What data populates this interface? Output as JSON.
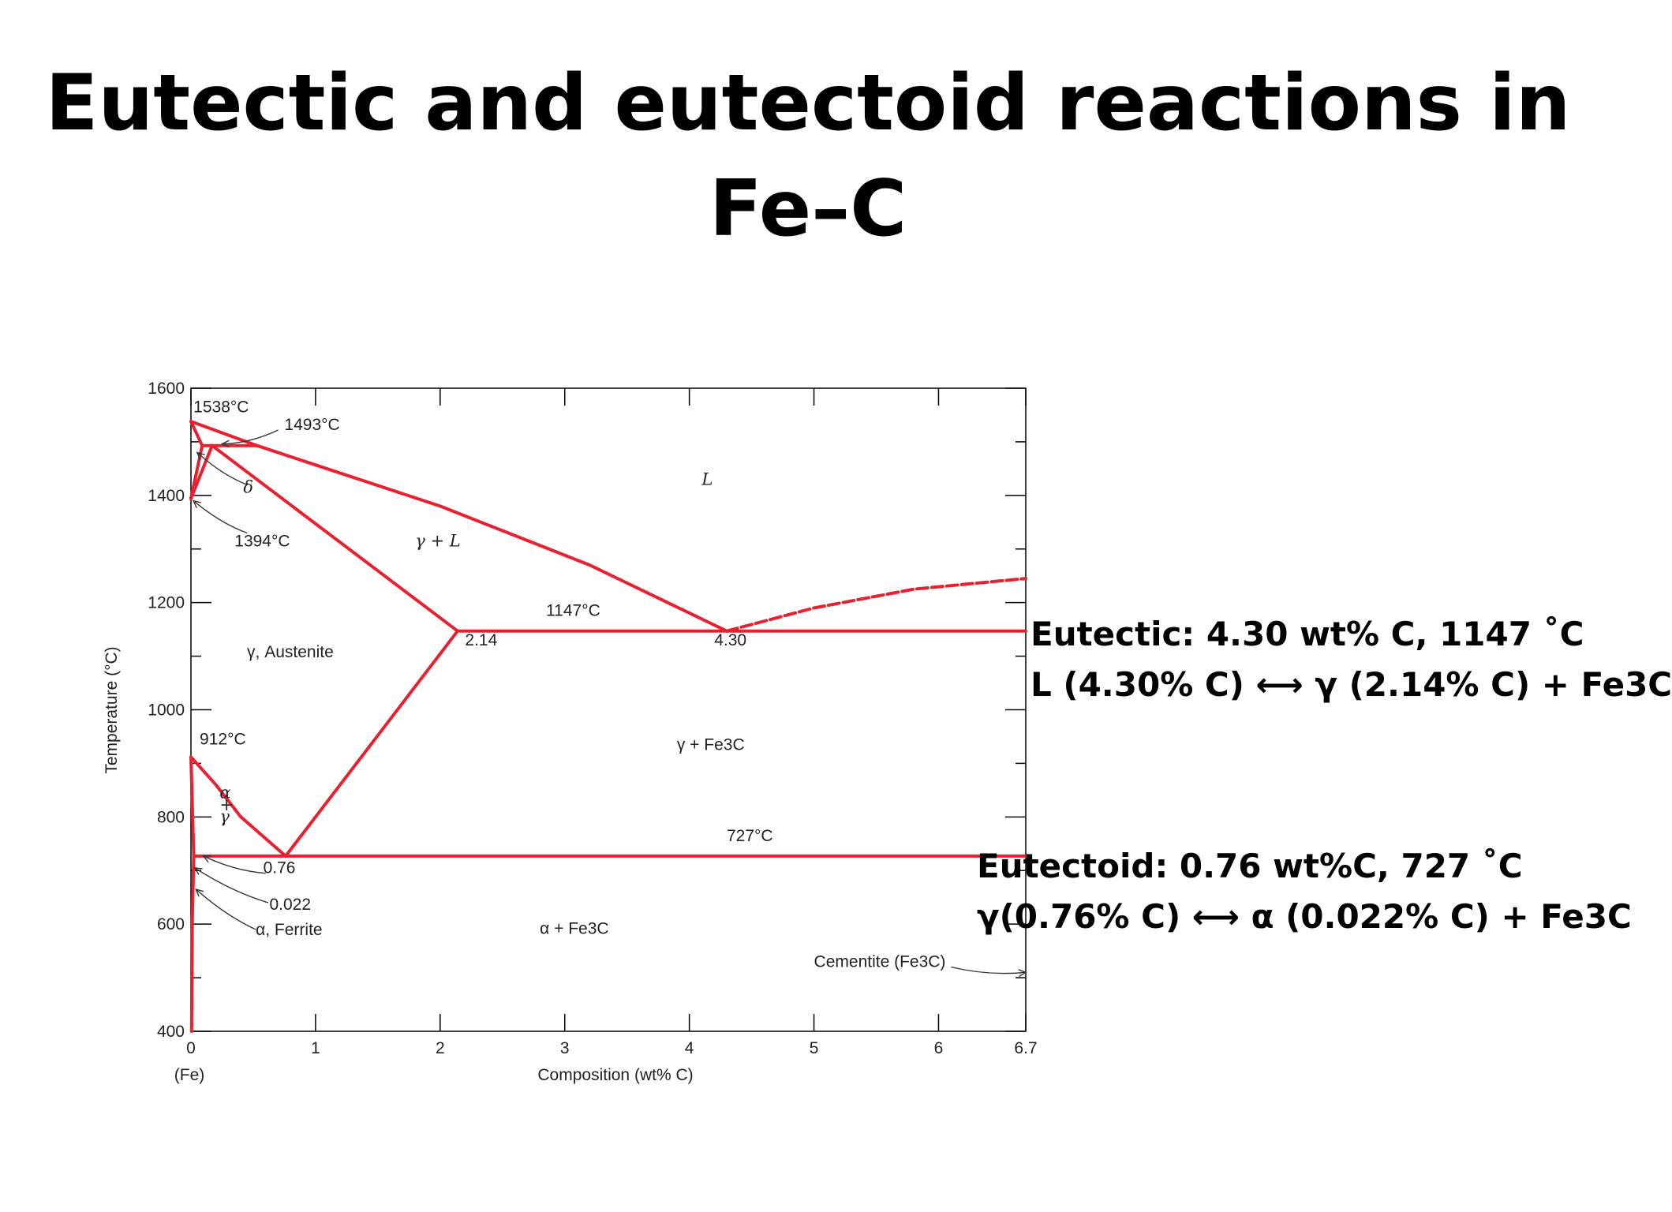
{
  "slide": {
    "title_line1": "Eutectic and eutectoid reactions in",
    "title_line2": "Fe–C"
  },
  "colors": {
    "phase_line": "#e8202f",
    "axis": "#000000",
    "text": "#222222"
  },
  "chart_data": {
    "type": "line",
    "title": "",
    "xlabel": "Composition (wt% C)",
    "ylabel": "Temperature (°C)",
    "xlim": [
      0,
      6.7
    ],
    "ylim": [
      400,
      1600
    ],
    "x_ticks": [
      {
        "value": 0,
        "label": "0"
      },
      {
        "value": 1,
        "label": "1"
      },
      {
        "value": 2,
        "label": "2"
      },
      {
        "value": 3,
        "label": "3"
      },
      {
        "value": 4,
        "label": "4"
      },
      {
        "value": 5,
        "label": "5"
      },
      {
        "value": 6,
        "label": "6"
      },
      {
        "value": 6.7,
        "label": "6.7"
      }
    ],
    "x_origin_label": "(Fe)",
    "y_ticks": [
      {
        "value": 400,
        "label": "400"
      },
      {
        "value": 600,
        "label": "600"
      },
      {
        "value": 800,
        "label": "800"
      },
      {
        "value": 1000,
        "label": "1000"
      },
      {
        "value": 1200,
        "label": "1200"
      },
      {
        "value": 1400,
        "label": "1400"
      },
      {
        "value": 1600,
        "label": "1600"
      }
    ],
    "phase_lines": [
      {
        "points": [
          [
            0,
            1538
          ],
          [
            0.53,
            1493
          ],
          [
            2.0,
            1380
          ],
          [
            3.2,
            1270
          ],
          [
            4.3,
            1147
          ]
        ]
      },
      {
        "points": [
          [
            0,
            1538
          ],
          [
            0.09,
            1493
          ]
        ]
      },
      {
        "points": [
          [
            0,
            1394
          ],
          [
            0.09,
            1493
          ]
        ]
      },
      {
        "points": [
          [
            0.09,
            1493
          ],
          [
            0.53,
            1493
          ]
        ]
      },
      {
        "points": [
          [
            0,
            1394
          ],
          [
            0.17,
            1493
          ]
        ]
      },
      {
        "points": [
          [
            0.17,
            1493
          ],
          [
            2.14,
            1147
          ]
        ]
      },
      {
        "points": [
          [
            2.14,
            1147
          ],
          [
            6.7,
            1147
          ]
        ]
      },
      {
        "points": [
          [
            2.14,
            1147
          ],
          [
            0.76,
            727
          ]
        ]
      },
      {
        "points": [
          [
            0,
            912
          ],
          [
            0.2,
            860
          ],
          [
            0.4,
            800
          ],
          [
            0.76,
            727
          ]
        ]
      },
      {
        "points": [
          [
            0,
            912
          ],
          [
            0.022,
            727
          ]
        ]
      },
      {
        "points": [
          [
            0.022,
            727
          ],
          [
            6.7,
            727
          ]
        ]
      },
      {
        "points": [
          [
            0.022,
            727
          ],
          [
            0.01,
            600
          ],
          [
            0.005,
            400
          ]
        ]
      },
      {
        "points": [
          [
            4.3,
            1147
          ],
          [
            5.0,
            1190
          ],
          [
            5.8,
            1225
          ],
          [
            6.7,
            1245
          ]
        ],
        "dashed": true
      }
    ],
    "annotations": [
      {
        "text": "1538°C",
        "x": 0.02,
        "y": 1555
      },
      {
        "text": "1493°C",
        "x": 0.75,
        "y": 1522
      },
      {
        "text": "δ",
        "x": 0.42,
        "y": 1405
      },
      {
        "text": "1394°C",
        "x": 0.35,
        "y": 1305
      },
      {
        "text": "L",
        "x": 4.1,
        "y": 1420
      },
      {
        "text": "γ + L",
        "x": 1.8,
        "y": 1305
      },
      {
        "text": "1147°C",
        "x": 2.85,
        "y": 1175
      },
      {
        "text": "2.14",
        "x": 2.2,
        "y": 1120
      },
      {
        "text": "4.30",
        "x": 4.2,
        "y": 1120
      },
      {
        "text": "γ, Austenite",
        "x": 0.45,
        "y": 1098
      },
      {
        "text": "912°C",
        "x": 0.07,
        "y": 935
      },
      {
        "text": "γ + Fe3C",
        "x": 3.9,
        "y": 925
      },
      {
        "text": "α",
        "x": 0.23,
        "y": 835
      },
      {
        "text": "+",
        "x": 0.23,
        "y": 812
      },
      {
        "text": "γ",
        "x": 0.23,
        "y": 790
      },
      {
        "text": "727°C",
        "x": 4.3,
        "y": 755
      },
      {
        "text": "0.76",
        "x": 0.58,
        "y": 695
      },
      {
        "text": "0.022",
        "x": 0.63,
        "y": 627
      },
      {
        "text": "α, Ferrite",
        "x": 0.52,
        "y": 580
      },
      {
        "text": "α + Fe3C",
        "x": 2.8,
        "y": 582
      },
      {
        "text": "Cementite (Fe3C)",
        "x": 5.0,
        "y": 520
      }
    ],
    "callouts": [
      {
        "from": [
          0.7,
          1522
        ],
        "to": [
          0.25,
          1496
        ]
      },
      {
        "from": [
          0.45,
          1420
        ],
        "to": [
          0.05,
          1480
        ]
      },
      {
        "from": [
          0.45,
          1330
        ],
        "to": [
          0.02,
          1390
        ]
      },
      {
        "from": [
          0.6,
          695
        ],
        "to": [
          0.1,
          727
        ]
      },
      {
        "from": [
          0.62,
          640
        ],
        "to": [
          0.03,
          705
        ]
      },
      {
        "from": [
          0.52,
          590
        ],
        "to": [
          0.04,
          665
        ]
      },
      {
        "from": [
          6.1,
          520
        ],
        "to": [
          6.7,
          510
        ]
      }
    ]
  },
  "notes": {
    "eutectic": {
      "line1": "Eutectic: 4.30 wt% C, 1147 ˚C",
      "line2": "L (4.30% C) ⟷ γ (2.14% C) + Fe3C"
    },
    "eutectoid": {
      "line1": "Eutectoid: 0.76 wt%C, 727 ˚C",
      "line2": "γ(0.76% C) ⟷ α (0.022% C) + Fe3C"
    }
  }
}
